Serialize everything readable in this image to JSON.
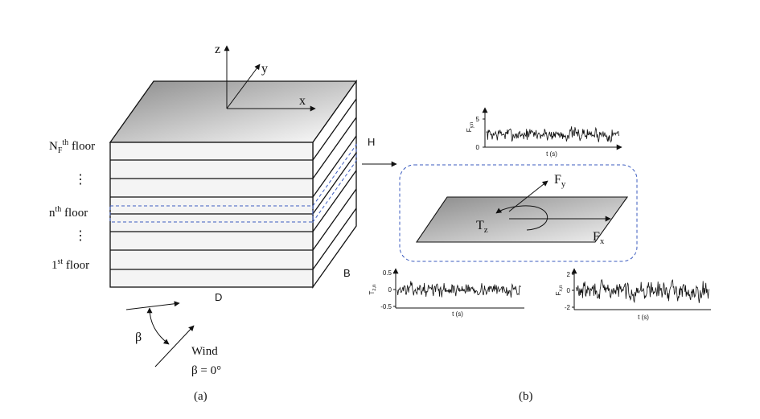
{
  "panel_a": {
    "axes": {
      "z": "z",
      "y": "y",
      "x": "x"
    },
    "floor_labels": {
      "top": {
        "base": "N",
        "sub": "F",
        "sup": "th",
        "rest": " floor"
      },
      "dots_upper": "⋮",
      "middle": {
        "base": "n",
        "sup": "th",
        "rest": " floor"
      },
      "dots_lower": "⋮",
      "first": {
        "base": "1",
        "sup": "st",
        "rest": " floor"
      }
    },
    "dims": {
      "H": "H",
      "B": "B",
      "D": "D"
    },
    "wind": {
      "beta": "β",
      "label": "Wind",
      "angle": "β = 0°"
    },
    "caption": "(a)"
  },
  "panel_b": {
    "plate_labels": {
      "fy": {
        "base": "F",
        "sub": "y"
      },
      "fx": {
        "base": "F",
        "sub": "x"
      },
      "tz": {
        "base": "T",
        "sub": "z"
      }
    },
    "caption": "(b)"
  },
  "chart_data": [
    {
      "type": "line",
      "id": "fy",
      "ylabel": "F_{y,n}",
      "xlabel": "t (s)",
      "yticks": [
        "0",
        "5"
      ],
      "ylim": [
        0,
        5
      ],
      "mean": 2.3,
      "amplitude": 0.8,
      "seed": 7
    },
    {
      "type": "line",
      "id": "tz",
      "ylabel": "T_{z,n}",
      "xlabel": "t (s)",
      "yticks": [
        "0.5",
        "0",
        "-0.5"
      ],
      "ylim": [
        -0.5,
        0.5
      ],
      "mean": 0,
      "amplitude": 0.12,
      "seed": 13
    },
    {
      "type": "line",
      "id": "fx",
      "ylabel": "F_{x,n}",
      "xlabel": "t (s)",
      "yticks": [
        "2",
        "0",
        "-2"
      ],
      "ylim": [
        -2,
        2
      ],
      "mean": 0,
      "amplitude": 0.7,
      "seed": 29
    }
  ],
  "colors": {
    "dashed_box": "#3b5bbf",
    "plate_dark": "#909090",
    "plate_light": "#ffffff"
  }
}
